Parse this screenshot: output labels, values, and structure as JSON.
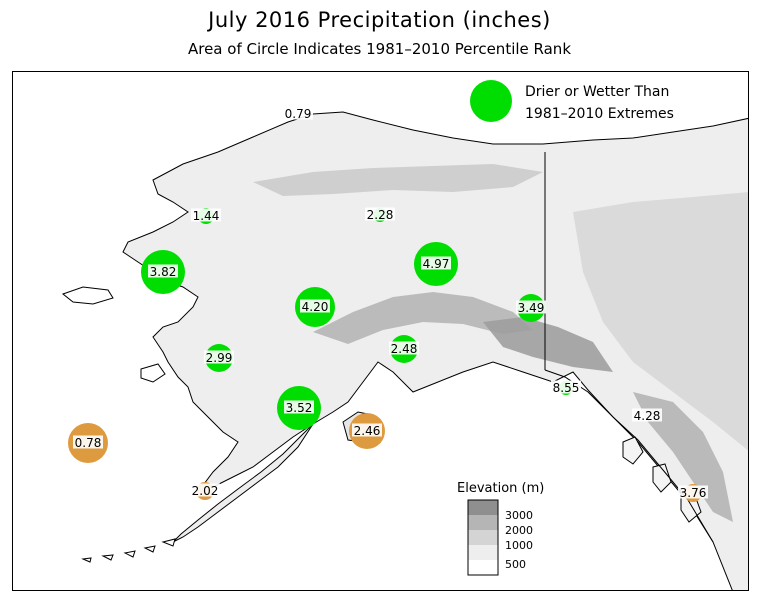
{
  "title": "July 2016 Precipitation (inches)",
  "subtitle": "Area of Circle Indicates 1981–2010 Percentile Rank",
  "legend": {
    "line1": "Drier or Wetter Than",
    "line2": "1981–2010 Extremes",
    "color": "#00dd00"
  },
  "colors": {
    "wet": "#00dd00",
    "dry": "#de9a3e",
    "land_low": "#f2f2f2",
    "land_mid": "#dcdcdc",
    "land_high": "#bdbdbd",
    "land_peak": "#8f8f8f",
    "border": "#000000"
  },
  "elevation_legend": {
    "title": "Elevation (m)",
    "labels": [
      "3000",
      "2000",
      "1000",
      "500"
    ]
  },
  "stations": [
    {
      "id": "barrow",
      "label": "0.79",
      "category": "none"
    },
    {
      "id": "kotzebue",
      "label": "1.44",
      "category": "wet"
    },
    {
      "id": "bettles",
      "label": "2.28",
      "category": "wet"
    },
    {
      "id": "nome",
      "label": "3.82",
      "category": "wet"
    },
    {
      "id": "fairbanks",
      "label": "4.97",
      "category": "wet"
    },
    {
      "id": "mcgrath",
      "label": "4.20",
      "category": "wet"
    },
    {
      "id": "northway",
      "label": "3.49",
      "category": "wet"
    },
    {
      "id": "bethel",
      "label": "2.99",
      "category": "wet"
    },
    {
      "id": "anchorage",
      "label": "2.48",
      "category": "wet"
    },
    {
      "id": "yakutat",
      "label": "8.55",
      "category": "wet"
    },
    {
      "id": "kingsalmon",
      "label": "3.52",
      "category": "wet"
    },
    {
      "id": "stpaul",
      "label": "0.78",
      "category": "dry"
    },
    {
      "id": "kodiak",
      "label": "2.46",
      "category": "dry"
    },
    {
      "id": "juneau",
      "label": "4.28",
      "category": "none"
    },
    {
      "id": "coldbay",
      "label": "2.02",
      "category": "dry"
    },
    {
      "id": "ketchikan",
      "label": "3.76",
      "category": "dry"
    }
  ]
}
